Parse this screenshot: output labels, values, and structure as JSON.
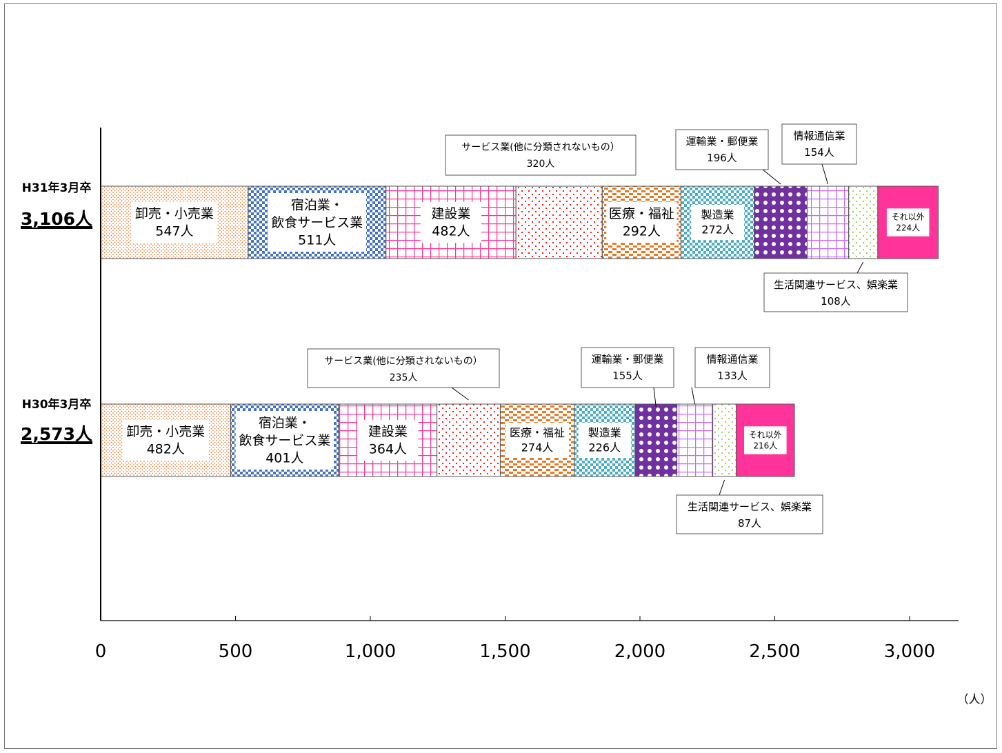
{
  "chart_data": {
    "type": "bar",
    "orientation": "horizontal",
    "stacked": true,
    "unit": "（人）",
    "xlim": [
      0,
      3000
    ],
    "xticks": [
      {
        "value": 0,
        "label": "0"
      },
      {
        "value": 500,
        "label": "500"
      },
      {
        "value": 1000,
        "label": "1,000"
      },
      {
        "value": 1500,
        "label": "1,500"
      },
      {
        "value": 2000,
        "label": "2,000"
      },
      {
        "value": 2500,
        "label": "2,500"
      },
      {
        "value": 3000,
        "label": "3,000"
      }
    ],
    "grid": false,
    "legend": "none",
    "bars": [
      {
        "label": "H31年3月卒",
        "total": "3,106人",
        "segments": [
          {
            "name": "卸売・小売業",
            "value": 547,
            "value_label": "547人",
            "color": "#ed7d31",
            "pattern": "dots"
          },
          {
            "name": "宿泊業・飲食サービス業",
            "value": 511,
            "value_label": "511人",
            "color": "#4472c4",
            "pattern": "checker"
          },
          {
            "name": "建設業",
            "value": 482,
            "value_label": "482人",
            "color": "#ff3399",
            "pattern": "grid"
          },
          {
            "name": "サービス業(他に分類されないもの）",
            "value": 320,
            "value_label": "320人",
            "color": "#ff0000",
            "pattern": "sparse-dots"
          },
          {
            "name": "医療・福祉",
            "value": 292,
            "value_label": "292人",
            "color": "#e87722",
            "pattern": "bricks"
          },
          {
            "name": "製造業",
            "value": 272,
            "value_label": "272人",
            "color": "#4bacc6",
            "pattern": "checker"
          },
          {
            "name": "運輸業・郵便業",
            "value": 196,
            "value_label": "196人",
            "color": "#7030a0",
            "pattern": "circles"
          },
          {
            "name": "情報通信業",
            "value": 154,
            "value_label": "154人",
            "color": "#cc66ff",
            "pattern": "grid"
          },
          {
            "name": "生活関連サービス、娯楽業",
            "value": 108,
            "value_label": "108人",
            "color": "#92d050",
            "pattern": "sparse-dots"
          },
          {
            "name": "それ以外",
            "value": 224,
            "value_label": "224人",
            "color": "#ff3399",
            "pattern": "solid"
          }
        ]
      },
      {
        "label": "H30年3月卒",
        "total": "2,573人",
        "segments": [
          {
            "name": "卸売・小売業",
            "value": 482,
            "value_label": "482人",
            "color": "#ed7d31",
            "pattern": "dots"
          },
          {
            "name": "宿泊業・飲食サービス業",
            "value": 401,
            "value_label": "401人",
            "color": "#4472c4",
            "pattern": "checker"
          },
          {
            "name": "建設業",
            "value": 364,
            "value_label": "364人",
            "color": "#ff3399",
            "pattern": "grid"
          },
          {
            "name": "サービス業(他に分類されないもの）",
            "value": 235,
            "value_label": "235人",
            "color": "#ff0000",
            "pattern": "sparse-dots"
          },
          {
            "name": "医療・福祉",
            "value": 274,
            "value_label": "274人",
            "color": "#e87722",
            "pattern": "bricks"
          },
          {
            "name": "製造業",
            "value": 226,
            "value_label": "226人",
            "color": "#4bacc6",
            "pattern": "checker"
          },
          {
            "name": "運輸業・郵便業",
            "value": 155,
            "value_label": "155人",
            "color": "#7030a0",
            "pattern": "circles"
          },
          {
            "name": "情報通信業",
            "value": 133,
            "value_label": "133人",
            "color": "#cc66ff",
            "pattern": "grid"
          },
          {
            "name": "生活関連サービス、娯楽業",
            "value": 87,
            "value_label": "87人",
            "color": "#92d050",
            "pattern": "sparse-dots"
          },
          {
            "name": "それ以外",
            "value": 216,
            "value_label": "216人",
            "color": "#ff3399",
            "pattern": "solid"
          }
        ]
      }
    ],
    "inside_labels": [
      {
        "bar": 0,
        "seg": 0,
        "lines": [
          "卸売・小売業",
          "547人"
        ]
      },
      {
        "bar": 0,
        "seg": 1,
        "lines": [
          "宿泊業・",
          "飲食サービス業",
          "511人"
        ]
      },
      {
        "bar": 0,
        "seg": 2,
        "lines": [
          "建設業",
          "482人"
        ]
      },
      {
        "bar": 0,
        "seg": 4,
        "lines": [
          "医療・福祉",
          "292人"
        ]
      },
      {
        "bar": 0,
        "seg": 5,
        "lines": [
          "製造業",
          "272人"
        ]
      },
      {
        "bar": 0,
        "seg": 9,
        "lines": [
          "それ以外",
          "224人"
        ]
      },
      {
        "bar": 1,
        "seg": 0,
        "lines": [
          "卸売・小売業",
          "482人"
        ]
      },
      {
        "bar": 1,
        "seg": 1,
        "lines": [
          "宿泊業・",
          "飲食サービス業",
          "401人"
        ]
      },
      {
        "bar": 1,
        "seg": 2,
        "lines": [
          "建設業",
          "364人"
        ]
      },
      {
        "bar": 1,
        "seg": 4,
        "lines": [
          "医療・福祉",
          "274人"
        ]
      },
      {
        "bar": 1,
        "seg": 5,
        "lines": [
          "製造業",
          "226人"
        ]
      },
      {
        "bar": 1,
        "seg": 9,
        "lines": [
          "それ以外",
          "216人"
        ]
      }
    ],
    "callouts": [
      {
        "bar": 0,
        "seg": 3,
        "lines": [
          "サービス業(他に分類されないもの）",
          "320人"
        ]
      },
      {
        "bar": 0,
        "seg": 6,
        "lines": [
          "運輸業・郵便業",
          "196人"
        ]
      },
      {
        "bar": 0,
        "seg": 7,
        "lines": [
          "情報通信業",
          "154人"
        ]
      },
      {
        "bar": 0,
        "seg": 8,
        "lines": [
          "生活関連サービス、娯楽業",
          "108人"
        ]
      },
      {
        "bar": 1,
        "seg": 3,
        "lines": [
          "サービス業(他に分類されないもの）",
          "235人"
        ]
      },
      {
        "bar": 1,
        "seg": 6,
        "lines": [
          "運輸業・郵便業",
          "155人"
        ]
      },
      {
        "bar": 1,
        "seg": 7,
        "lines": [
          "情報通信業",
          "133人"
        ]
      },
      {
        "bar": 1,
        "seg": 8,
        "lines": [
          "生活関連サービス、娯楽業",
          "87人"
        ]
      }
    ]
  }
}
